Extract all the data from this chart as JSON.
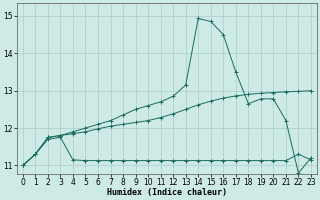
{
  "xlabel": "Humidex (Indice chaleur)",
  "background_color": "#ceeae6",
  "grid_color": "#aaccc8",
  "line_color": "#1a6b5a",
  "xlim": [
    -0.5,
    23.5
  ],
  "ylim": [
    10.78,
    15.35
  ],
  "xticks": [
    0,
    1,
    2,
    3,
    4,
    5,
    6,
    7,
    8,
    9,
    10,
    11,
    12,
    13,
    14,
    15,
    16,
    17,
    18,
    19,
    20,
    21,
    22,
    23
  ],
  "yticks": [
    11,
    12,
    13,
    14,
    15
  ],
  "line1_x": [
    0,
    1,
    2,
    3,
    4,
    5,
    6,
    7,
    8,
    9,
    10,
    11,
    12,
    13,
    14,
    15,
    16,
    17,
    18,
    19,
    20,
    21,
    22,
    23
  ],
  "line1_y": [
    11.0,
    11.3,
    11.7,
    11.75,
    11.15,
    11.13,
    11.13,
    11.13,
    11.13,
    11.13,
    11.13,
    11.13,
    11.13,
    11.13,
    11.13,
    11.13,
    11.13,
    11.13,
    11.13,
    11.13,
    11.13,
    11.13,
    11.3,
    11.15
  ],
  "line2_x": [
    0,
    1,
    2,
    3,
    4,
    5,
    6,
    7,
    8,
    9,
    10,
    11,
    12,
    13,
    14,
    15,
    16,
    17,
    18,
    19,
    20,
    21,
    22,
    23
  ],
  "line2_y": [
    11.0,
    11.3,
    11.75,
    11.8,
    11.85,
    11.9,
    11.98,
    12.05,
    12.1,
    12.15,
    12.2,
    12.28,
    12.38,
    12.5,
    12.62,
    12.72,
    12.8,
    12.86,
    12.9,
    12.93,
    12.95,
    12.97,
    12.98,
    13.0
  ],
  "line3_x": [
    0,
    1,
    2,
    3,
    4,
    5,
    6,
    7,
    8,
    9,
    10,
    11,
    12,
    13,
    14,
    15,
    16,
    17,
    18,
    19,
    20,
    21,
    22,
    23
  ],
  "line3_y": [
    11.0,
    11.3,
    11.75,
    11.8,
    11.9,
    12.0,
    12.1,
    12.2,
    12.35,
    12.5,
    12.6,
    12.7,
    12.85,
    13.15,
    14.93,
    14.85,
    14.5,
    13.5,
    12.65,
    12.78,
    12.78,
    12.2,
    10.8,
    11.2
  ],
  "figsize": [
    3.2,
    2.0
  ],
  "dpi": 100
}
